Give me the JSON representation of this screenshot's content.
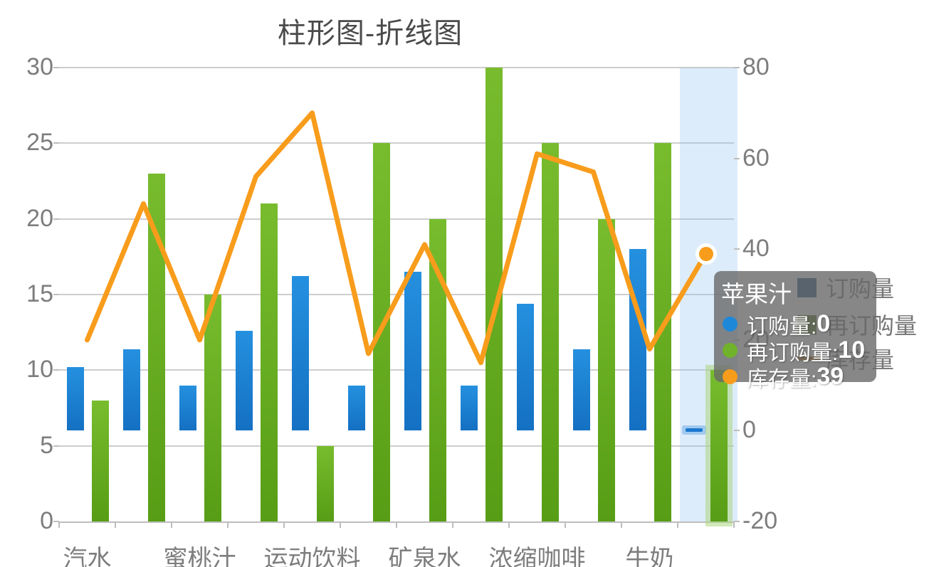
{
  "title": "柱形图-折线图",
  "chart_data": {
    "type": "bar",
    "subtype": "column-and-line-mix-dual-axis",
    "categories": [
      "汽水",
      "",
      "蜜桃汁",
      "",
      "运动饮料",
      "",
      "矿泉水",
      "",
      "浓缩咖啡",
      "",
      "牛奶",
      "苹果汁"
    ],
    "x_axis_visible_labels": [
      "汽水",
      "蜜桃汁",
      "运动饮料",
      "矿泉水",
      "浓缩咖啡",
      "牛奶"
    ],
    "series": [
      {
        "name": "订购量",
        "type": "column",
        "axis": "right",
        "color": "#1e88d8",
        "values": [
          14,
          18,
          10,
          22,
          34,
          10,
          35,
          10,
          28,
          18,
          40,
          0
        ]
      },
      {
        "name": "再订购量",
        "type": "column",
        "axis": "left",
        "color": "#6ab023",
        "values": [
          8,
          23,
          15,
          21,
          5,
          25,
          20,
          30,
          25,
          20,
          25,
          10
        ]
      },
      {
        "name": "库存量",
        "type": "line",
        "axis": "right",
        "color": "#f89c1c",
        "values": [
          20,
          50,
          20,
          56,
          70,
          17,
          41,
          15,
          61,
          57,
          18,
          39
        ]
      }
    ],
    "left_axis": {
      "min": 0,
      "max": 30,
      "ticks": [
        30,
        25,
        20,
        15,
        10,
        5,
        0
      ]
    },
    "right_axis": {
      "min": -20,
      "max": 80,
      "ticks": [
        80,
        60,
        40,
        20,
        0,
        -20
      ]
    },
    "grid": "horizontal",
    "legend_position": "right",
    "highlighted_category_index": 11,
    "highlight_band_color": "#d9e9f8"
  },
  "tooltip": {
    "header": "苹果汁",
    "rows": [
      {
        "label": "订购量:",
        "value": "0",
        "color": "#1e88d8"
      },
      {
        "label": "再订购量:",
        "value": "10",
        "color": "#70b32a"
      },
      {
        "label": "库存量:",
        "value": "39",
        "color": "#f89c1c"
      }
    ]
  },
  "legend": [
    {
      "label": "订购量",
      "marker": "square",
      "color": "#1d4e7c"
    },
    {
      "label": "再订购量",
      "marker": "square",
      "color": "#476b13"
    },
    {
      "label": "库存量",
      "marker": "line",
      "color": "#9c6410"
    }
  ]
}
